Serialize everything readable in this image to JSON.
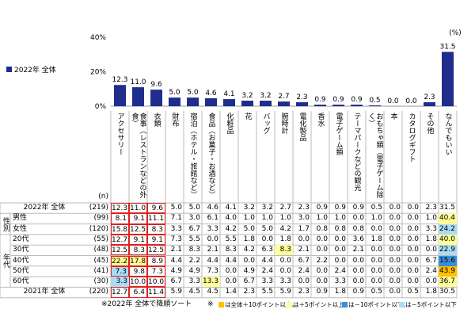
{
  "chart_data": {
    "type": "bar",
    "unit_label": "(%)",
    "categories": [
      "アクセサリー",
      "食事（レストランなどの外食）",
      "衣類",
      "財布",
      "宿泊（ホテル・旅館など）",
      "食品（お菓子・お酒など）",
      "化粧品",
      "花",
      "バッグ",
      "腕時計",
      "電化製品",
      "香水",
      "電子ゲーム類",
      "テーマパークなどの観光",
      "おもちゃ類（電子ゲーム除く）",
      "本",
      "カタログギフト",
      "その他",
      "なんでもいい"
    ],
    "series": [
      {
        "name": "2022年 全体",
        "color": "#1f2d8c",
        "values": [
          12.3,
          11.0,
          9.6,
          5.0,
          5.0,
          4.6,
          4.1,
          3.2,
          3.2,
          2.7,
          2.3,
          0.9,
          0.9,
          0.9,
          0.5,
          0.0,
          0.0,
          2.3,
          31.5
        ],
        "value_labels": [
          "12.3",
          "11.0",
          "9.6",
          "5.0",
          "5.0",
          "4.6",
          "4.1",
          "3.2",
          "3.2",
          "2.7",
          "2.3",
          "0.9",
          "0.9",
          "0.9",
          "0.5",
          "0.0",
          "0.0",
          "2.3",
          "31.5"
        ]
      }
    ],
    "ylim": [
      0,
      40
    ],
    "yticks": [
      {
        "value": 0,
        "label": "0%"
      },
      {
        "value": 20,
        "label": "20%"
      },
      {
        "value": 40,
        "label": "40%"
      }
    ]
  },
  "table": {
    "n_header": "(n)",
    "sections": [
      {
        "rows": [
          {
            "label": "2022年 全体",
            "n": "(219)",
            "values": [
              "12.3",
              "11.0",
              "9.6",
              "5.0",
              "5.0",
              "4.6",
              "4.1",
              "3.2",
              "3.2",
              "2.7",
              "2.3",
              "0.9",
              "0.9",
              "0.9",
              "0.5",
              "0.0",
              "0.0",
              "2.3",
              "31.5"
            ]
          }
        ]
      },
      {
        "label": "性別",
        "rows": [
          {
            "label": "男性",
            "n": "(99)",
            "values": [
              "8.1",
              "9.1",
              "11.1",
              "7.1",
              "3.0",
              "6.1",
              "4.0",
              "1.0",
              "1.0",
              "1.0",
              "3.0",
              "1.0",
              "1.0",
              "0.0",
              "1.0",
              "0.0",
              "0.0",
              "1.0",
              "40.4"
            ]
          },
          {
            "label": "女性",
            "n": "(120)",
            "values": [
              "15.8",
              "12.5",
              "8.3",
              "3.3",
              "6.7",
              "3.3",
              "4.2",
              "5.0",
              "5.0",
              "4.2",
              "1.7",
              "0.8",
              "0.8",
              "0.8",
              "0.0",
              "0.0",
              "0.0",
              "3.3",
              "24.2"
            ]
          }
        ]
      },
      {
        "label": "年代",
        "rows": [
          {
            "label": "20代",
            "n": "(55)",
            "values": [
              "12.7",
              "9.1",
              "9.1",
              "7.3",
              "5.5",
              "0.0",
              "5.5",
              "1.8",
              "0.0",
              "1.8",
              "0.0",
              "0.0",
              "0.0",
              "3.6",
              "1.8",
              "0.0",
              "0.0",
              "1.8",
              "40.0"
            ]
          },
          {
            "label": "30代",
            "n": "(48)",
            "values": [
              "12.5",
              "8.3",
              "12.5",
              "2.1",
              "8.3",
              "2.1",
              "8.3",
              "4.2",
              "6.3",
              "8.3",
              "2.1",
              "0.0",
              "0.0",
              "2.1",
              "0.0",
              "0.0",
              "0.0",
              "0.0",
              "22.9"
            ]
          },
          {
            "label": "40代",
            "n": "(45)",
            "values": [
              "22.2",
              "17.8",
              "8.9",
              "4.4",
              "2.2",
              "4.4",
              "4.4",
              "0.0",
              "4.4",
              "0.0",
              "6.7",
              "2.2",
              "0.0",
              "0.0",
              "0.0",
              "0.0",
              "0.0",
              "6.7",
              "15.6"
            ]
          },
          {
            "label": "50代",
            "n": "(41)",
            "values": [
              "7.3",
              "9.8",
              "7.3",
              "4.9",
              "4.9",
              "7.3",
              "0.0",
              "4.9",
              "2.4",
              "0.0",
              "2.4",
              "0.0",
              "2.4",
              "0.0",
              "0.0",
              "0.0",
              "0.0",
              "2.4",
              "43.9"
            ]
          },
          {
            "label": "60代",
            "n": "(30)",
            "values": [
              "3.3",
              "10.0",
              "10.0",
              "6.7",
              "3.3",
              "13.3",
              "0.0",
              "6.7",
              "3.3",
              "3.3",
              "0.0",
              "0.0",
              "3.3",
              "0.0",
              "0.0",
              "0.0",
              "0.0",
              "0.0",
              "36.7"
            ]
          }
        ]
      },
      {
        "rows": [
          {
            "label": "2021年 全体",
            "n": "(220)",
            "values": [
              "12.7",
              "6.4",
              "11.4",
              "5.9",
              "4.5",
              "4.5",
              "1.4",
              "2.3",
              "5.5",
              "5.9",
              "2.3",
              "0.9",
              "1.8",
              "0.9",
              "0.5",
              "0.0",
              "0.5",
              "1.8",
              "30.5"
            ]
          }
        ]
      }
    ]
  },
  "notes": {
    "sort": "※2022年 全体で降順ソート",
    "mark": "※",
    "legend": [
      {
        "color": "#ffc000",
        "text": "は全体＋10ポイント以上、"
      },
      {
        "color": "#ffff99",
        "text": "は＋5ポイント以上、"
      },
      {
        "color": "#3a8fd9",
        "text": "は－10ポイント以下、"
      },
      {
        "color": "#a9dcf5",
        "text": "は－5ポイント以下"
      }
    ]
  }
}
